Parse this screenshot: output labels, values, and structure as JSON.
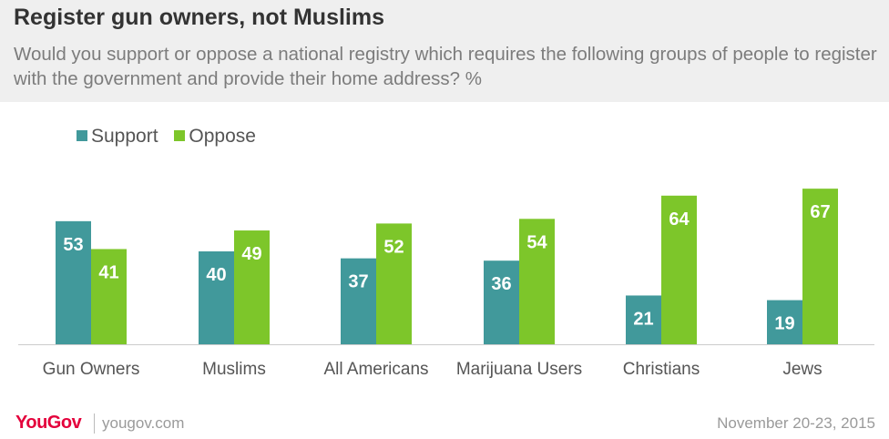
{
  "header": {
    "title": "Register gun owners, not Muslims",
    "subtitle": "Would you support or oppose a national registry which requires the following groups of people to register with the government and provide their home address? %"
  },
  "legend": {
    "support_label": "Support",
    "oppose_label": "Oppose"
  },
  "colors": {
    "support": "#41999b",
    "oppose": "#7dc62a",
    "header_bg": "#efefef",
    "brand": "#e4003b"
  },
  "footer": {
    "logo": "YouGov",
    "site": "yougov.com",
    "date": "November 20-23, 2015"
  },
  "chart_data": {
    "type": "bar",
    "title": "Register gun owners, not Muslims",
    "categories": [
      "Gun Owners",
      "Muslims",
      "All Americans",
      "Marijuana Users",
      "Christians",
      "Jews"
    ],
    "series": [
      {
        "name": "Support",
        "values": [
          53,
          40,
          37,
          36,
          21,
          19
        ]
      },
      {
        "name": "Oppose",
        "values": [
          41,
          49,
          52,
          54,
          64,
          67
        ]
      }
    ],
    "xlabel": "",
    "ylabel": "",
    "ylim": [
      0,
      70
    ],
    "grid": false,
    "legend_position": "top-left"
  }
}
